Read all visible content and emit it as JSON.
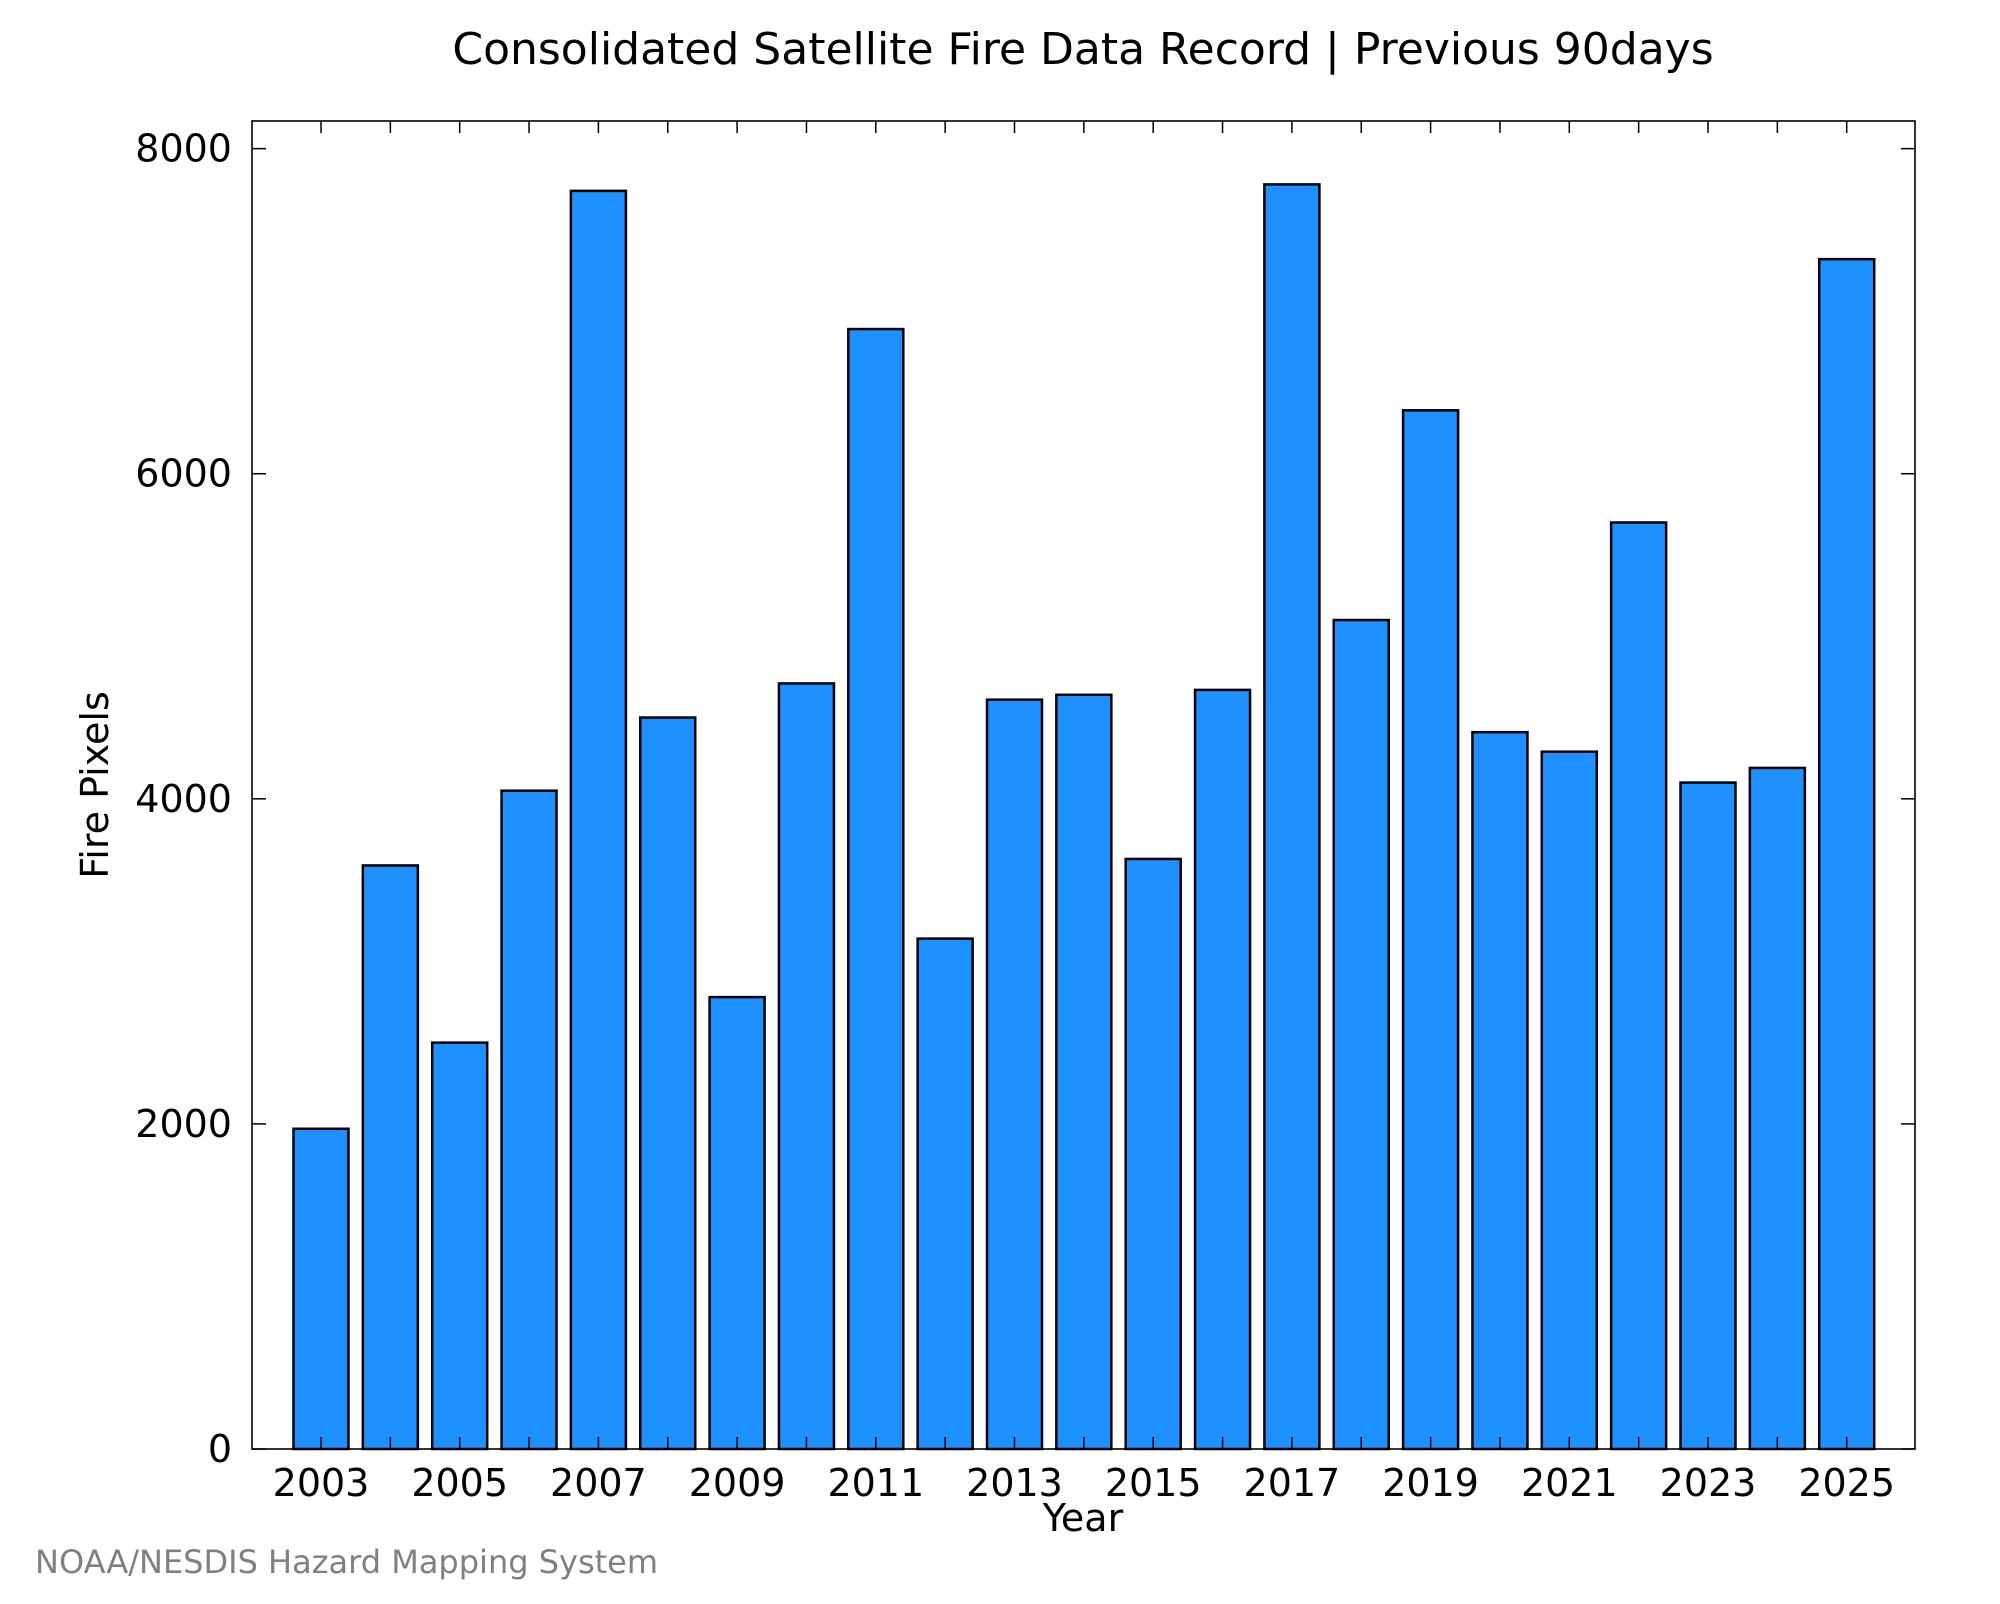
{
  "chart_data": {
    "type": "bar",
    "title": "Consolidated Satellite Fire Data Record | Previous 90days",
    "xlabel": "Year",
    "ylabel": "Fire Pixels",
    "categories": [
      "2003",
      "2004",
      "2005",
      "2006",
      "2007",
      "2008",
      "2009",
      "2010",
      "2011",
      "2012",
      "2013",
      "2014",
      "2015",
      "2016",
      "2017",
      "2018",
      "2019",
      "2020",
      "2021",
      "2022",
      "2023",
      "2024",
      "2025"
    ],
    "values": [
      1970,
      3590,
      2500,
      4050,
      7740,
      4500,
      2780,
      4710,
      6890,
      3140,
      4610,
      4640,
      3630,
      4670,
      7780,
      5100,
      6390,
      4410,
      4290,
      5700,
      4100,
      4190,
      7320
    ],
    "xticks": [
      "2003",
      "2005",
      "2007",
      "2009",
      "2011",
      "2013",
      "2015",
      "2017",
      "2019",
      "2021",
      "2023",
      "2025"
    ],
    "yticks": [
      0,
      2000,
      4000,
      6000,
      8000
    ],
    "ylim": [
      0,
      8170
    ],
    "grid": false,
    "legend": "none",
    "bar_color": "#1e90ff",
    "bar_edge_color": "#000000"
  },
  "footer": {
    "credit": "NOAA/NESDIS Hazard Mapping System",
    "credit_color": "#808080"
  }
}
